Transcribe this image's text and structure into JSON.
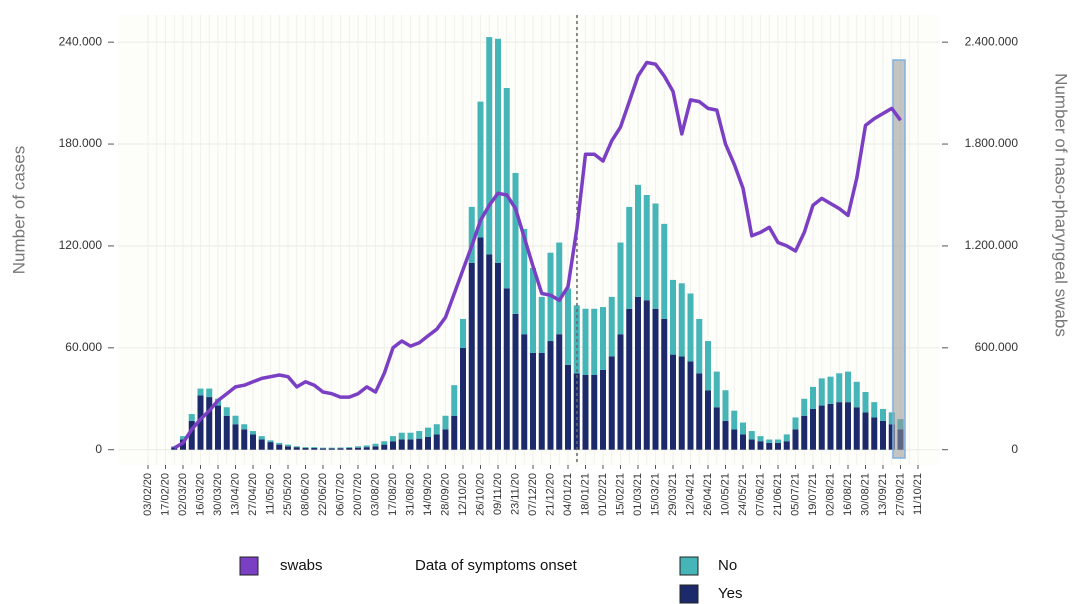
{
  "chart_data": {
    "type": "bar",
    "stacked": true,
    "y_label": "Number of cases",
    "y2_label": "Number of naso-pharyngeal swabs",
    "legend_title": "Data of symptoms onset",
    "categories": [
      "03/02/20",
      null,
      "17/02/20",
      null,
      "02/03/20",
      null,
      "16/03/20",
      null,
      "30/03/20",
      null,
      "13/04/20",
      null,
      "27/04/20",
      null,
      "11/05/20",
      null,
      "25/05/20",
      null,
      "08/06/20",
      null,
      "22/06/20",
      null,
      "06/07/20",
      null,
      "20/07/20",
      null,
      "03/08/20",
      null,
      "17/08/20",
      null,
      "31/08/20",
      null,
      "14/09/20",
      null,
      "28/09/20",
      null,
      "12/10/20",
      null,
      "26/10/20",
      null,
      "09/11/20",
      null,
      "23/11/20",
      null,
      "07/12/20",
      null,
      "21/12/20",
      null,
      "04/01/21",
      null,
      "18/01/21",
      null,
      "01/02/21",
      null,
      "15/02/21",
      null,
      "01/03/21",
      null,
      "15/03/21",
      null,
      "29/03/21",
      null,
      "12/04/21",
      null,
      "26/04/21",
      null,
      "10/05/21",
      null,
      "24/05/21",
      null,
      "07/06/21",
      null,
      "21/06/21",
      null,
      "05/07/21",
      null,
      "19/07/21",
      null,
      "02/08/21",
      null,
      "16/08/21",
      null,
      "30/08/21",
      null,
      "13/09/21",
      null,
      "27/09/21",
      null,
      "11/10/21"
    ],
    "series": [
      {
        "name": "swabs",
        "type": "line",
        "axis": "y2",
        "color": "#7b3fc4",
        "values": [
          null,
          null,
          null,
          10000,
          40000,
          120000,
          180000,
          230000,
          290000,
          330000,
          370000,
          380000,
          400000,
          420000,
          430000,
          440000,
          430000,
          370000,
          400000,
          380000,
          340000,
          330000,
          310000,
          310000,
          330000,
          370000,
          340000,
          450000,
          600000,
          640000,
          610000,
          630000,
          670000,
          710000,
          780000,
          920000,
          1060000,
          1200000,
          1350000,
          1440000,
          1510000,
          1500000,
          1420000,
          1250000,
          1080000,
          920000,
          910000,
          880000,
          960000,
          1300000,
          1740000,
          1740000,
          1700000,
          1820000,
          1900000,
          2050000,
          2200000,
          2280000,
          2270000,
          2200000,
          2110000,
          1860000,
          2060000,
          2050000,
          2010000,
          2000000,
          1800000,
          1680000,
          1540000,
          1260000,
          1280000,
          1310000,
          1220000,
          1200000,
          1170000,
          1280000,
          1440000,
          1480000,
          1450000,
          1420000,
          1380000,
          1600000,
          1910000,
          1950000,
          1980000,
          2010000,
          1940000,
          null,
          null
        ]
      },
      {
        "name": "Yes",
        "type": "bar",
        "color": "#1c2a6b",
        "values": [
          null,
          null,
          null,
          1500,
          6000,
          17000,
          32000,
          31000,
          26000,
          20000,
          15000,
          12000,
          9000,
          6000,
          4500,
          3000,
          2000,
          1500,
          1000,
          1000,
          800,
          800,
          900,
          1000,
          1200,
          1500,
          2000,
          3000,
          5000,
          6000,
          6000,
          6500,
          7500,
          9000,
          12000,
          20000,
          60000,
          110000,
          125000,
          115000,
          110000,
          95000,
          80000,
          68000,
          57000,
          57000,
          64000,
          68000,
          50000,
          45000,
          44000,
          44000,
          47000,
          55000,
          68000,
          83000,
          90000,
          88000,
          83000,
          77000,
          56000,
          55000,
          52000,
          45000,
          35000,
          25000,
          17000,
          12000,
          9000,
          6000,
          5000,
          4000,
          4000,
          5000,
          12000,
          20000,
          24000,
          26000,
          27000,
          28000,
          28000,
          25000,
          22000,
          19000,
          17000,
          15000,
          12000,
          null,
          null
        ]
      },
      {
        "name": "No",
        "type": "bar",
        "color": "#45b5b8",
        "values": [
          null,
          null,
          null,
          500,
          2000,
          4000,
          4000,
          5000,
          4000,
          5000,
          5000,
          3000,
          2000,
          2000,
          1000,
          1000,
          1000,
          500,
          500,
          500,
          400,
          400,
          400,
          500,
          800,
          1000,
          1500,
          2000,
          3000,
          4000,
          4000,
          4500,
          5500,
          6000,
          8000,
          18000,
          17000,
          33000,
          80000,
          128000,
          132000,
          118000,
          83000,
          62000,
          50000,
          33000,
          52000,
          54000,
          45000,
          40000,
          39000,
          39000,
          37000,
          35000,
          54000,
          60000,
          66000,
          62000,
          62000,
          56000,
          44000,
          43000,
          40000,
          32000,
          29000,
          21000,
          18000,
          11000,
          7000,
          5000,
          3000,
          2000,
          2000,
          4000,
          7000,
          10000,
          13000,
          16000,
          16000,
          17000,
          18000,
          15000,
          12000,
          9000,
          7000,
          7000,
          6000,
          null,
          null
        ]
      }
    ],
    "ylim": [
      -9000,
      256000
    ],
    "yticks": [
      0,
      {
        "value": 60000,
        "label": "60.000"
      },
      {
        "value": 120000,
        "label": "120.000"
      },
      {
        "value": 180000,
        "label": "180.000"
      },
      {
        "value": 240000,
        "label": "240.000"
      }
    ],
    "y2lim": [
      -90000,
      2560000
    ],
    "y2ticks": [
      0,
      {
        "value": 600000,
        "label": "600.000"
      },
      {
        "value": 1200000,
        "label": "1.200.000"
      },
      {
        "value": 1800000,
        "label": "1.800.000"
      },
      {
        "value": 2400000,
        "label": "2.400.000"
      }
    ],
    "grid": true
  }
}
